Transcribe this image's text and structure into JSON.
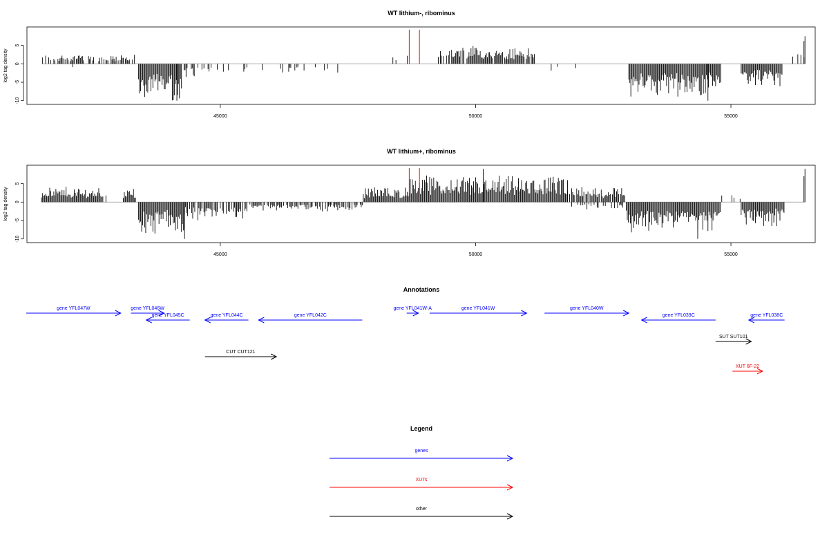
{
  "chart_data": [
    {
      "type": "bar",
      "title": "WT lithium-, ribominus",
      "ylabel": "log2 tag density",
      "xlabel": "",
      "xlim": [
        41200,
        56650
      ],
      "ylim": [
        -11,
        10
      ],
      "x_ticks": [
        45000,
        50000,
        55000
      ],
      "y_ticks": [
        -10,
        -5,
        0,
        5
      ],
      "marker_lines": {
        "color": "#ff0000",
        "x": [
          48700,
          48900
        ]
      },
      "segments": [
        {
          "start": 41500,
          "end": 43350,
          "value": 1.8,
          "sign": 1,
          "density": 0.55
        },
        {
          "start": 42050,
          "end": 42150,
          "value": 1.5,
          "sign": -1,
          "density": 0.2
        },
        {
          "start": 43400,
          "end": 44250,
          "value": 7.0,
          "sign": -1,
          "density": 1.0
        },
        {
          "start": 44250,
          "end": 44500,
          "value": 3.0,
          "sign": -1,
          "density": 0.5
        },
        {
          "start": 44500,
          "end": 45550,
          "value": 2.5,
          "sign": -1,
          "density": 0.3
        },
        {
          "start": 45800,
          "end": 47650,
          "value": 1.8,
          "sign": -1,
          "density": 0.15
        },
        {
          "start": 48300,
          "end": 48700,
          "value": 1.8,
          "sign": 1,
          "density": 0.15
        },
        {
          "start": 49250,
          "end": 51150,
          "value": 3.5,
          "sign": 1,
          "density": 0.85
        },
        {
          "start": 51400,
          "end": 52300,
          "value": 2.0,
          "sign": -1,
          "density": 0.05
        },
        {
          "start": 53000,
          "end": 54800,
          "value": 6.5,
          "sign": -1,
          "density": 1.0
        },
        {
          "start": 55200,
          "end": 56000,
          "value": 4.5,
          "sign": -1,
          "density": 1.0
        },
        {
          "start": 56050,
          "end": 56450,
          "value": 3.0,
          "sign": 1,
          "density": 0.15
        }
      ],
      "peak_marks": [
        {
          "x": 44150,
          "value": -10
        },
        {
          "x": 54550,
          "value": -10
        },
        {
          "x": 56450,
          "value": 7.5
        },
        {
          "x": 56430,
          "value": 6.2
        }
      ]
    },
    {
      "type": "bar",
      "title": "WT lithium+, ribominus",
      "ylabel": "log2 tag density",
      "xlabel": "",
      "xlim": [
        41200,
        56650
      ],
      "ylim": [
        -11,
        10
      ],
      "x_ticks": [
        45000,
        50000,
        55000
      ],
      "y_ticks": [
        -10,
        -5,
        0,
        5
      ],
      "marker_lines": {
        "color": "#ff0000",
        "x": [
          48700,
          48900
        ]
      },
      "segments": [
        {
          "start": 41500,
          "end": 42700,
          "value": 3.0,
          "sign": 1,
          "density": 1.0
        },
        {
          "start": 42700,
          "end": 43000,
          "value": 1.5,
          "sign": 1,
          "density": 0.1
        },
        {
          "start": 43100,
          "end": 43350,
          "value": 2.8,
          "sign": 1,
          "density": 0.9
        },
        {
          "start": 43400,
          "end": 44300,
          "value": 6.0,
          "sign": -1,
          "density": 1.0
        },
        {
          "start": 44300,
          "end": 45500,
          "value": 3.5,
          "sign": -1,
          "density": 0.8
        },
        {
          "start": 45500,
          "end": 47800,
          "value": 1.8,
          "sign": -1,
          "density": 0.75
        },
        {
          "start": 47800,
          "end": 48700,
          "value": 3.0,
          "sign": 1,
          "density": 1.0
        },
        {
          "start": 48700,
          "end": 51800,
          "value": 5.0,
          "sign": 1,
          "density": 1.0
        },
        {
          "start": 51800,
          "end": 52950,
          "value": 3.0,
          "sign": 1,
          "density": 0.8
        },
        {
          "start": 51800,
          "end": 52950,
          "value": 1.5,
          "sign": -1,
          "density": 0.4
        },
        {
          "start": 52950,
          "end": 54800,
          "value": 6.0,
          "sign": -1,
          "density": 1.0
        },
        {
          "start": 54800,
          "end": 55200,
          "value": 2.0,
          "sign": 1,
          "density": 0.2
        },
        {
          "start": 55200,
          "end": 56050,
          "value": 4.5,
          "sign": -1,
          "density": 1.0
        }
      ],
      "peak_marks": [
        {
          "x": 44300,
          "value": -10
        },
        {
          "x": 54350,
          "value": -10
        },
        {
          "x": 50150,
          "value": 9
        },
        {
          "x": 56450,
          "value": 9
        },
        {
          "x": 56430,
          "value": 7
        }
      ]
    }
  ],
  "annotations": {
    "title": "Annotations",
    "items": [
      {
        "label": "gene YFL047W",
        "start": 41200,
        "end": 43050,
        "strand": "+",
        "row": 0,
        "color": "#0000ff"
      },
      {
        "label": "gene YFL046W",
        "start": 43250,
        "end": 43900,
        "strand": "+",
        "row": 0,
        "color": "#0000ff"
      },
      {
        "label": "gene YFL045C",
        "start": 43550,
        "end": 44400,
        "strand": "-",
        "row": 1,
        "color": "#0000ff"
      },
      {
        "label": "gene YFL044C",
        "start": 44700,
        "end": 45550,
        "strand": "-",
        "row": 1,
        "color": "#0000ff"
      },
      {
        "label": "gene YFL042C",
        "start": 45750,
        "end": 47780,
        "strand": "-",
        "row": 1,
        "color": "#0000ff"
      },
      {
        "label": "gene YFL041W-A",
        "start": 48650,
        "end": 48880,
        "strand": "+",
        "row": 0,
        "color": "#0000ff"
      },
      {
        "label": "gene YFL041W",
        "start": 49100,
        "end": 51000,
        "strand": "+",
        "row": 0,
        "color": "#0000ff"
      },
      {
        "label": "gene YFL040W",
        "start": 51350,
        "end": 53000,
        "strand": "+",
        "row": 0,
        "color": "#0000ff"
      },
      {
        "label": "gene YFL039C",
        "start": 53250,
        "end": 54700,
        "strand": "-",
        "row": 1,
        "color": "#0000ff"
      },
      {
        "label": "gene YFL038C",
        "start": 55350,
        "end": 56050,
        "strand": "-",
        "row": 1,
        "color": "#0000ff"
      },
      {
        "label": "SUT SUT101",
        "start": 54700,
        "end": 55400,
        "strand": "+",
        "row": 2,
        "color": "#000000"
      },
      {
        "label": "CUT CUT121",
        "start": 44700,
        "end": 46100,
        "strand": "+",
        "row": 3,
        "color": "#000000"
      },
      {
        "label": "XUT 6F-22",
        "start": 55030,
        "end": 55620,
        "strand": "+",
        "row": 4,
        "color": "#ff0000"
      }
    ]
  },
  "legend": {
    "title": "Legend",
    "items": [
      {
        "label": "genes",
        "color": "#0000ff"
      },
      {
        "label": "XUTs",
        "color": "#ff0000"
      },
      {
        "label": "other",
        "color": "#000000"
      }
    ]
  }
}
